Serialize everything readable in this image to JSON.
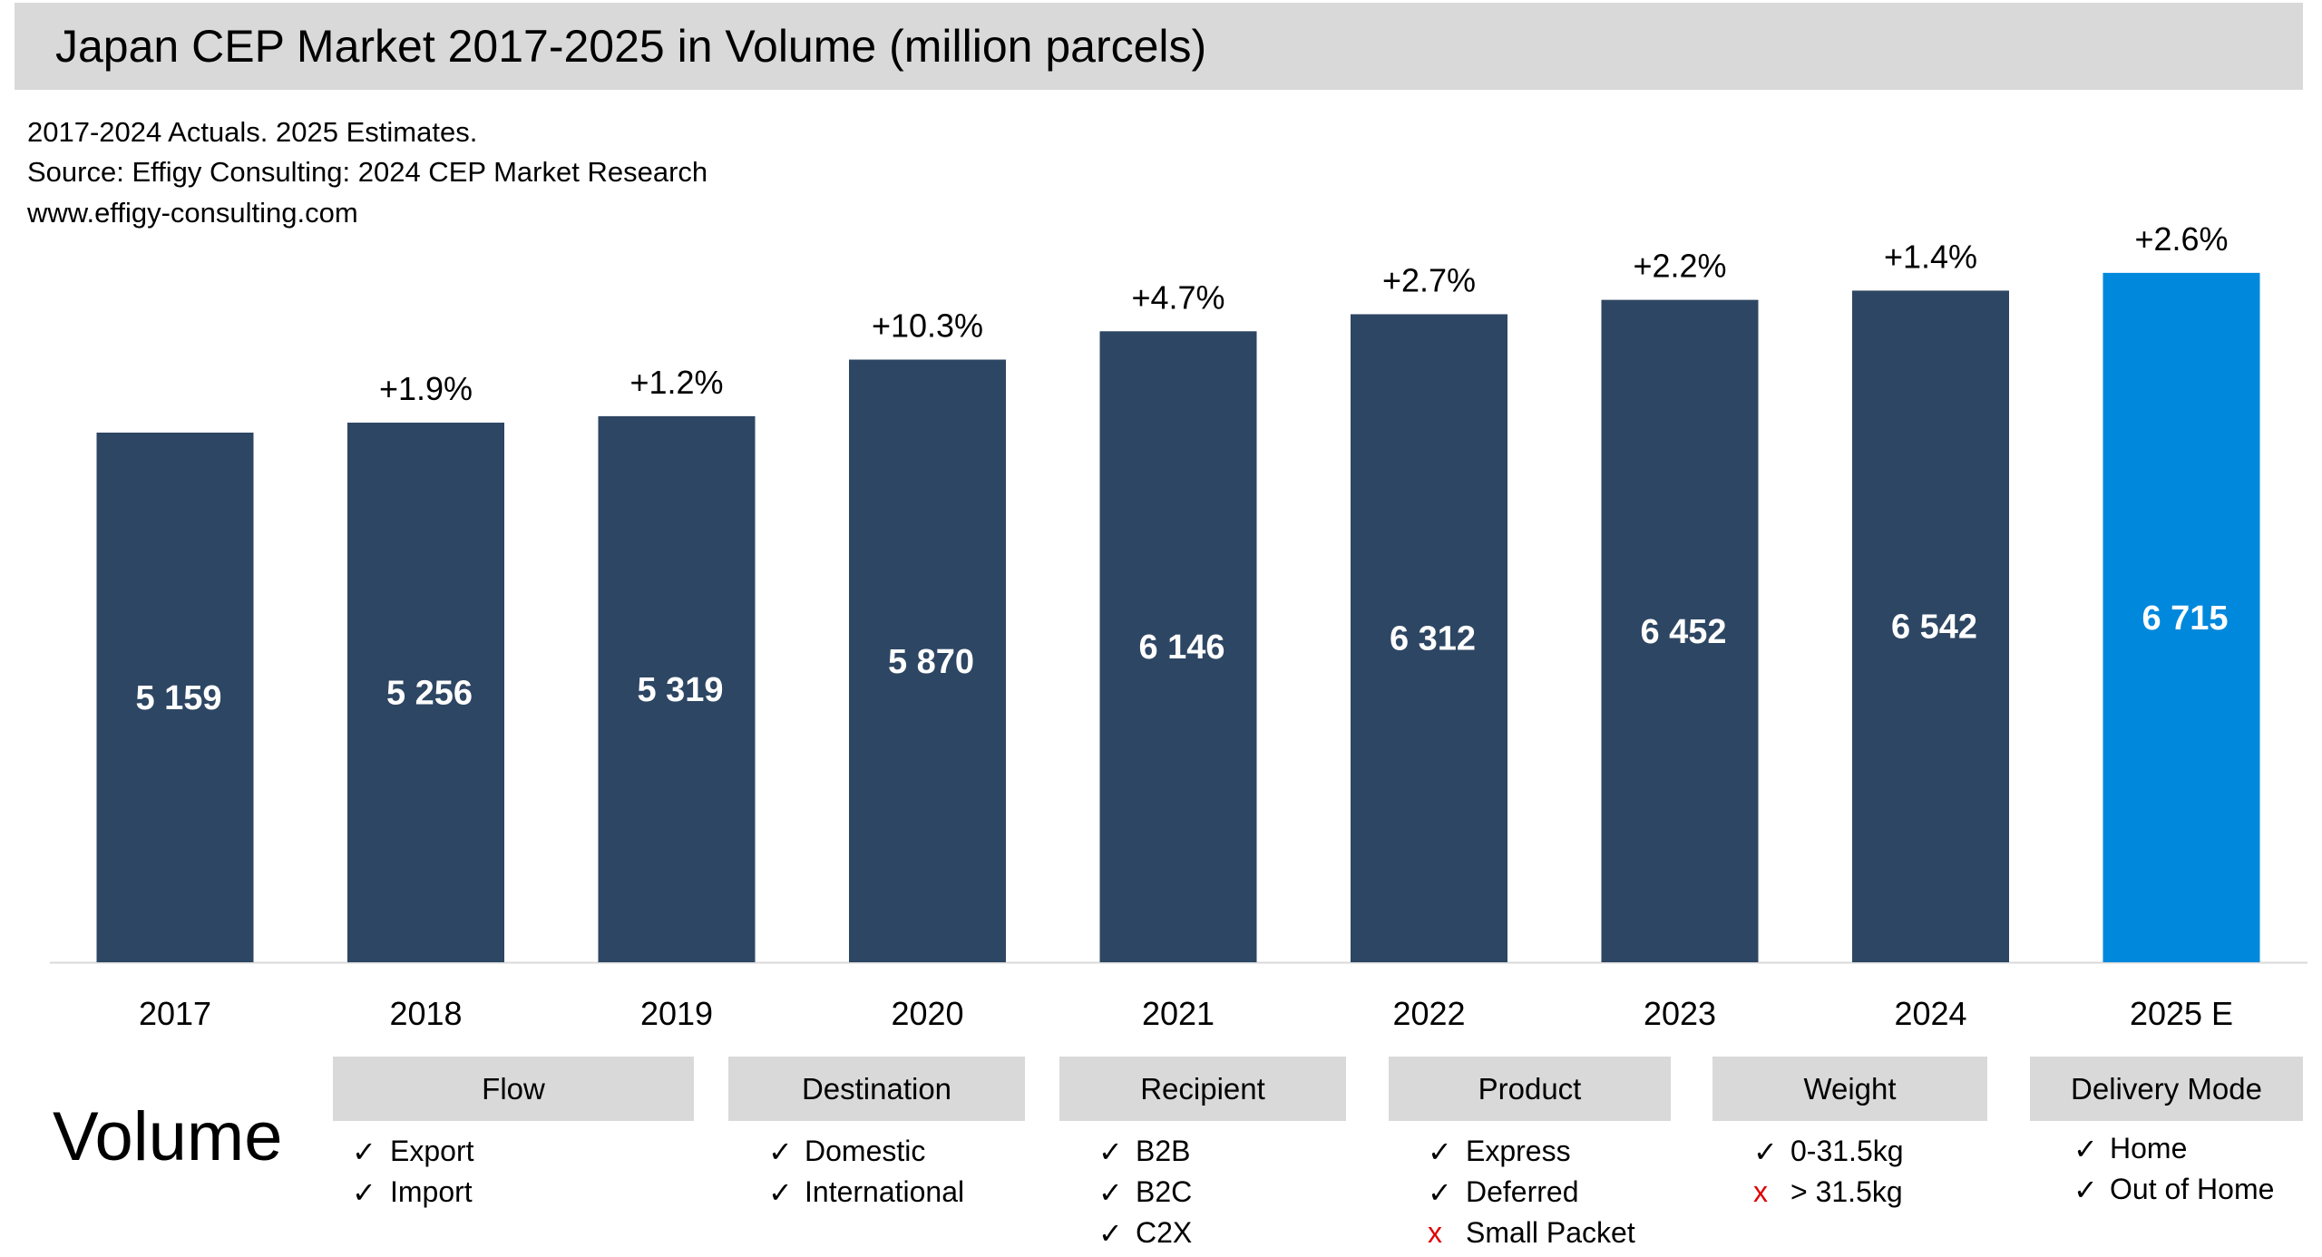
{
  "header": {
    "title": "Japan CEP Market 2017-2025 in Volume (million parcels)",
    "notes": [
      "2017-2024 Actuals. 2025 Estimates.",
      "Source: Effigy Consulting: 2024 CEP Market Research",
      "www.effigy-consulting.com"
    ]
  },
  "chart_data": {
    "type": "bar",
    "title": "Japan CEP Market 2017-2025 in Volume (million parcels)",
    "categories": [
      "2017",
      "2018",
      "2019",
      "2020",
      "2021",
      "2022",
      "2023",
      "2024",
      "2025 E"
    ],
    "values": [
      5159,
      5256,
      5319,
      5870,
      6146,
      6312,
      6452,
      6542,
      6715
    ],
    "value_labels": [
      "5 159",
      "5 256",
      "5 319",
      "5 870",
      "6 146",
      "6 312",
      "6 452",
      "6 542",
      "6 715"
    ],
    "growth_labels": [
      "",
      "+1.9%",
      "+1.2%",
      "+10.3%",
      "+4.7%",
      "+2.7%",
      "+2.2%",
      "+1.4%",
      "+2.6%"
    ],
    "ylim": [
      0,
      7000
    ],
    "grid": false,
    "colors": {
      "actual": "#2d4663",
      "estimate": "#0088dd"
    }
  },
  "scope": {
    "label": "Volume",
    "categories": [
      {
        "title": "Flow",
        "items": [
          {
            "text": "Export",
            "included": true
          },
          {
            "text": "Import",
            "included": true
          }
        ]
      },
      {
        "title": "Destination",
        "items": [
          {
            "text": "Domestic",
            "included": true
          },
          {
            "text": "International",
            "included": true
          }
        ]
      },
      {
        "title": "Recipient",
        "items": [
          {
            "text": "B2B",
            "included": true
          },
          {
            "text": "B2C",
            "included": true
          },
          {
            "text": "C2X",
            "included": true
          }
        ]
      },
      {
        "title": "Product",
        "items": [
          {
            "text": "Express",
            "included": true
          },
          {
            "text": "Deferred",
            "included": true
          },
          {
            "text": "Small Packet",
            "included": false
          }
        ]
      },
      {
        "title": "Weight",
        "items": [
          {
            "text": "0-31.5kg",
            "included": true
          },
          {
            "text": "> 31.5kg",
            "included": false
          }
        ]
      },
      {
        "title": "Delivery Mode",
        "items": [
          {
            "text": "Home",
            "included": true
          },
          {
            "text": "Out of Home",
            "included": true
          }
        ]
      }
    ],
    "check_symbol": "✓",
    "cross_symbol": "x"
  }
}
